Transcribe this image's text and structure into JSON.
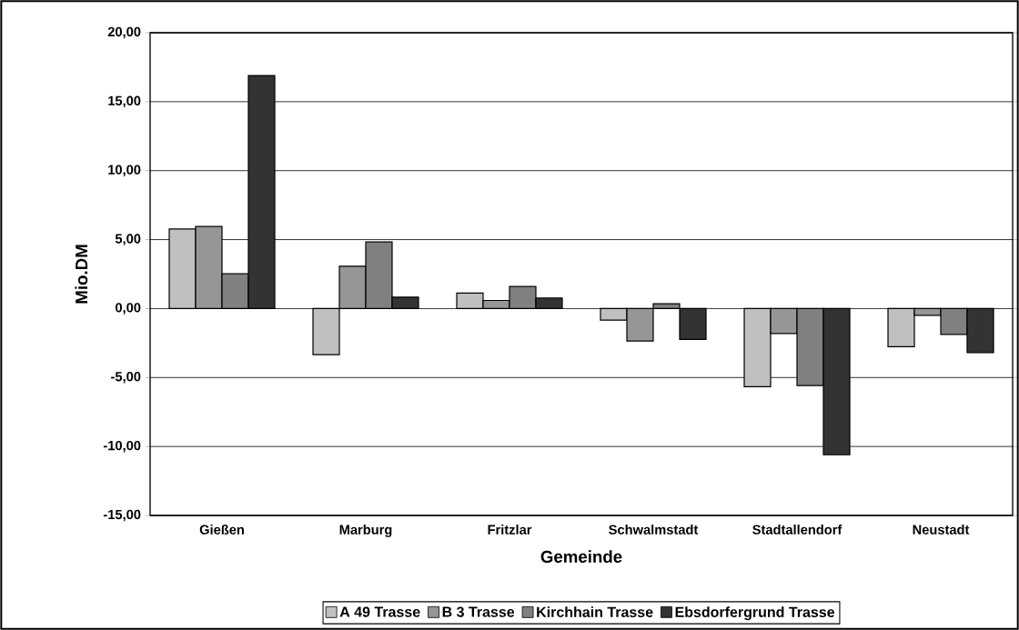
{
  "chart_data": {
    "type": "bar",
    "xlabel": "Gemeinde",
    "ylabel": "Mio.DM",
    "categories": [
      "Gießen",
      "Marburg",
      "Fritzlar",
      "Schwalmstadt",
      "Stadtallendorf",
      "Neustadt"
    ],
    "series": [
      {
        "name": "A 49 Trasse",
        "color": "#c0c0c0",
        "values": [
          5.77,
          -3.34,
          1.12,
          -0.84,
          -5.67,
          -2.77
        ]
      },
      {
        "name": "B 3 Trasse",
        "color": "#969696",
        "values": [
          5.95,
          3.07,
          0.59,
          -2.35,
          -1.81,
          -0.49
        ]
      },
      {
        "name": "Kirchhain Trasse",
        "color": "#808080",
        "values": [
          2.52,
          4.83,
          1.6,
          0.35,
          -5.58,
          -1.87
        ]
      },
      {
        "name": "Ebsdorfergrund Trasse",
        "color": "#333333",
        "values": [
          16.9,
          0.83,
          0.77,
          -2.24,
          -10.6,
          -3.19
        ]
      }
    ],
    "ylim": [
      -15,
      20
    ],
    "yticks": [
      {
        "value": -15,
        "label": "-15,00"
      },
      {
        "value": -10,
        "label": "-10,00"
      },
      {
        "value": -5,
        "label": "-5,00"
      },
      {
        "value": 0,
        "label": "0,00"
      },
      {
        "value": 5,
        "label": "5,00"
      },
      {
        "value": 10,
        "label": "10,00"
      },
      {
        "value": 15,
        "label": "15,00"
      },
      {
        "value": 20,
        "label": "20,00"
      }
    ],
    "grid": "y",
    "legend": "bottom"
  }
}
